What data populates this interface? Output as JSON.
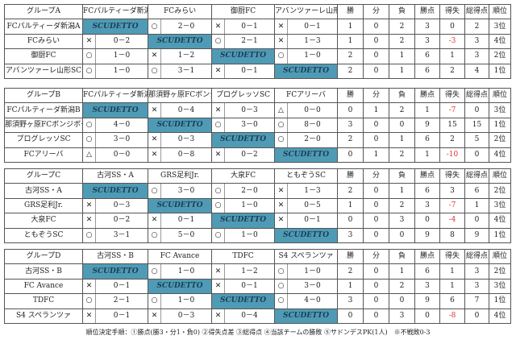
{
  "headers_stats": [
    "勝",
    "分",
    "負",
    "勝点",
    "得失",
    "総得点",
    "順位"
  ],
  "self_label": "SCUDETTO",
  "colors": {
    "self_cell": "#4f9bb5",
    "negative": "#e03030"
  },
  "groups": [
    {
      "title": "グループA",
      "teams": [
        "FCパルティーダ新潟A",
        "FCみらい",
        "御厨FC",
        "アバンツァーレ山形SC"
      ],
      "rows": [
        {
          "team": "FCパルティーダ新潟A",
          "results": [
            null,
            {
              "mark": "○",
              "score": "2－0"
            },
            {
              "mark": "✕",
              "score": "0－1"
            },
            {
              "mark": "✕",
              "score": "0－1"
            }
          ],
          "stats": [
            "1",
            "0",
            "2",
            "3",
            "0",
            "2",
            "3位"
          ]
        },
        {
          "team": "FCみらい",
          "results": [
            {
              "mark": "✕",
              "score": "0－2"
            },
            null,
            {
              "mark": "○",
              "score": "2－1"
            },
            {
              "mark": "✕",
              "score": "1－3"
            }
          ],
          "stats": [
            "1",
            "0",
            "2",
            "3",
            "-3",
            "3",
            "4位"
          ]
        },
        {
          "team": "御厨FC",
          "results": [
            {
              "mark": "○",
              "score": "1－0"
            },
            {
              "mark": "✕",
              "score": "1－2"
            },
            null,
            {
              "mark": "○",
              "score": "1－0"
            }
          ],
          "stats": [
            "2",
            "0",
            "1",
            "6",
            "1",
            "3",
            "2位"
          ]
        },
        {
          "team": "アバンツァーレ山形SC",
          "results": [
            {
              "mark": "○",
              "score": "1－0"
            },
            {
              "mark": "○",
              "score": "3－1"
            },
            {
              "mark": "✕",
              "score": "0－1"
            },
            null
          ],
          "stats": [
            "2",
            "0",
            "1",
            "6",
            "2",
            "4",
            "1位"
          ]
        }
      ]
    },
    {
      "title": "グループB",
      "teams": [
        "FCパルティーダ新潟B",
        "那須野ヶ原FCボンジボーラ",
        "プログレッソSC",
        "FCアリーバ"
      ],
      "rows": [
        {
          "team": "FCパルティーダ新潟B",
          "results": [
            null,
            {
              "mark": "✕",
              "score": "0－4"
            },
            {
              "mark": "✕",
              "score": "0－3"
            },
            {
              "mark": "△",
              "score": "0－0"
            }
          ],
          "stats": [
            "0",
            "1",
            "2",
            "1",
            "-7",
            "0",
            "3位"
          ]
        },
        {
          "team": "那須野ヶ原FCボンジボーラ",
          "results": [
            {
              "mark": "○",
              "score": "4－0"
            },
            null,
            {
              "mark": "○",
              "score": "3－0"
            },
            {
              "mark": "○",
              "score": "8－0"
            }
          ],
          "stats": [
            "3",
            "0",
            "0",
            "9",
            "15",
            "15",
            "1位"
          ]
        },
        {
          "team": "プログレッソSC",
          "results": [
            {
              "mark": "○",
              "score": "3－0"
            },
            {
              "mark": "✕",
              "score": "0－3"
            },
            null,
            {
              "mark": "○",
              "score": "2－0"
            }
          ],
          "stats": [
            "2",
            "0",
            "1",
            "6",
            "2",
            "5",
            "2位"
          ]
        },
        {
          "team": "FCアリーバ",
          "results": [
            {
              "mark": "△",
              "score": "0－0"
            },
            {
              "mark": "✕",
              "score": "0－8"
            },
            {
              "mark": "✕",
              "score": "0－2"
            },
            null
          ],
          "stats": [
            "0",
            "1",
            "2",
            "1",
            "-10",
            "0",
            "4位"
          ]
        }
      ]
    },
    {
      "title": "グループC",
      "teams": [
        "古河SS・A",
        "GRS足利Jr.",
        "大泉FC",
        "ともぞうSC"
      ],
      "rows": [
        {
          "team": "古河SS・A",
          "results": [
            null,
            {
              "mark": "○",
              "score": "3－0"
            },
            {
              "mark": "○",
              "score": "2－0"
            },
            {
              "mark": "✕",
              "score": "1－3"
            }
          ],
          "stats": [
            "2",
            "0",
            "1",
            "6",
            "3",
            "6",
            "2位"
          ]
        },
        {
          "team": "GRS足利Jr.",
          "results": [
            {
              "mark": "✕",
              "score": "0－3"
            },
            null,
            {
              "mark": "○",
              "score": "1－0"
            },
            {
              "mark": "✕",
              "score": "0－5"
            }
          ],
          "stats": [
            "1",
            "0",
            "2",
            "3",
            "-7",
            "1",
            "3位"
          ]
        },
        {
          "team": "大泉FC",
          "results": [
            {
              "mark": "✕",
              "score": "0－2"
            },
            {
              "mark": "✕",
              "score": "0－1"
            },
            null,
            {
              "mark": "✕",
              "score": "0－1"
            }
          ],
          "stats": [
            "0",
            "0",
            "3",
            "0",
            "-4",
            "0",
            "4位"
          ]
        },
        {
          "team": "ともぞうSC",
          "results": [
            {
              "mark": "○",
              "score": "3－1"
            },
            {
              "mark": "○",
              "score": "5－0"
            },
            {
              "mark": "○",
              "score": "1－0"
            },
            null
          ],
          "stats": [
            "3",
            "0",
            "0",
            "9",
            "8",
            "9",
            "1位"
          ]
        }
      ]
    },
    {
      "title": "グループD",
      "teams": [
        "古河SS・B",
        "FC Avance",
        "TDFC",
        "S4 スペランツァ"
      ],
      "rows": [
        {
          "team": "古河SS・B",
          "results": [
            null,
            {
              "mark": "○",
              "score": "1－0"
            },
            {
              "mark": "✕",
              "score": "1－2"
            },
            {
              "mark": "○",
              "score": "1－0"
            }
          ],
          "stats": [
            "2",
            "0",
            "1",
            "6",
            "1",
            "3",
            "2位"
          ]
        },
        {
          "team": "FC Avance",
          "results": [
            {
              "mark": "✕",
              "score": "0－1"
            },
            null,
            {
              "mark": "✕",
              "score": "0－1"
            },
            {
              "mark": "○",
              "score": "3－0"
            }
          ],
          "stats": [
            "1",
            "0",
            "2",
            "3",
            "1",
            "3",
            "3位"
          ]
        },
        {
          "team": "TDFC",
          "results": [
            {
              "mark": "○",
              "score": "2－1"
            },
            {
              "mark": "○",
              "score": "1－0"
            },
            null,
            {
              "mark": "○",
              "score": "4－0"
            }
          ],
          "stats": [
            "3",
            "0",
            "0",
            "9",
            "6",
            "7",
            "1位"
          ]
        },
        {
          "team": "S4 スペランツァ",
          "results": [
            {
              "mark": "✕",
              "score": "0－1"
            },
            {
              "mark": "✕",
              "score": "0－3"
            },
            {
              "mark": "✕",
              "score": "0－4"
            },
            null
          ],
          "stats": [
            "0",
            "0",
            "3",
            "0",
            "-8",
            "0",
            "4位"
          ]
        }
      ]
    }
  ],
  "footnote": "順位決定手順：①勝点(勝3・分1・負0) ②得失点差 ③総得点 ④当該チームの勝敗 ⑤サドンデスPK(1人)　※不戦敗0-3"
}
